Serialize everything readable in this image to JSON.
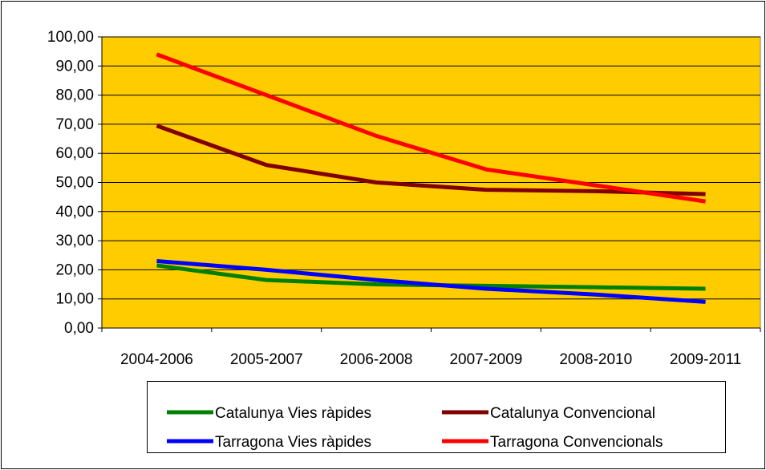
{
  "chart_data": {
    "type": "line",
    "categories": [
      "2004-2006",
      "2005-2007",
      "2006-2008",
      "2007-2009",
      "2008-2010",
      "2009-2011"
    ],
    "series": [
      {
        "name": "Catalunya Vies ràpides",
        "color": "#008000",
        "values": [
          21.5,
          16.5,
          15,
          14.5,
          14,
          13.5
        ]
      },
      {
        "name": "Catalunya Convencional",
        "color": "#800000",
        "values": [
          69.5,
          56,
          50,
          47.5,
          47,
          46
        ]
      },
      {
        "name": "Tarragona Vies ràpides",
        "color": "#0000ff",
        "values": [
          23,
          20,
          16.5,
          13.5,
          11.5,
          9
        ]
      },
      {
        "name": "Tarragona Convencionals",
        "color": "#ff0000",
        "values": [
          94,
          80,
          66,
          54.5,
          49,
          43.5
        ]
      }
    ],
    "ylim": [
      0,
      100
    ],
    "yticks": [
      {
        "value": 0,
        "label": "0,00"
      },
      {
        "value": 10,
        "label": "10,00"
      },
      {
        "value": 20,
        "label": "20,00"
      },
      {
        "value": 30,
        "label": "30,00"
      },
      {
        "value": 40,
        "label": "40,00"
      },
      {
        "value": 50,
        "label": "50,00"
      },
      {
        "value": 60,
        "label": "60,00"
      },
      {
        "value": 70,
        "label": "70,00"
      },
      {
        "value": 80,
        "label": "80,00"
      },
      {
        "value": 90,
        "label": "90,00"
      },
      {
        "value": 100,
        "label": "100,00"
      }
    ],
    "grid": true,
    "plot_background": "#ffcc00",
    "legend": "bottom"
  }
}
